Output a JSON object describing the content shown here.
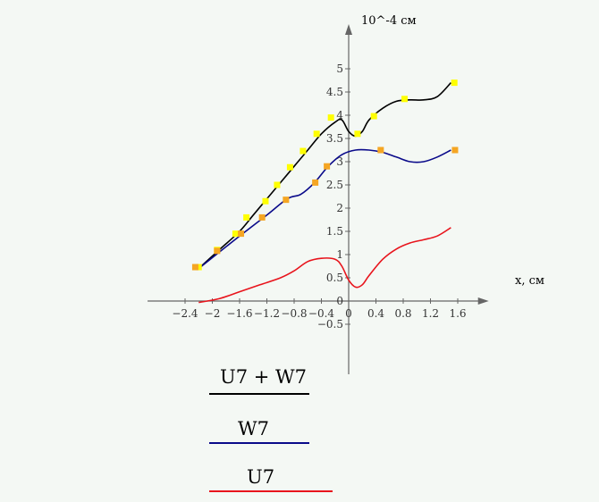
{
  "chart_data": {
    "type": "line",
    "title": "",
    "ylabel": "10^-4 см",
    "xlabel": "x, см",
    "xlim": [
      -2.95,
      1.95
    ],
    "ylim": [
      -1.0,
      5.5
    ],
    "x_ticks": [
      -2.4,
      -2,
      -1.6,
      -1.2,
      -0.8,
      -0.4,
      0,
      0.4,
      0.8,
      1.2,
      1.6
    ],
    "x_tick_labels": [
      "−2.4",
      "−2",
      "−1.6",
      "−1.2",
      "−0.8",
      "−0.4",
      "0",
      "0.4",
      "0.8",
      "1.2",
      "1.6"
    ],
    "y_ticks": [
      -0.5,
      0,
      0.5,
      1,
      1.5,
      2,
      2.5,
      3,
      3.5,
      4,
      4.5,
      5
    ],
    "y_tick_labels": [
      "−0.5",
      "0",
      "0.5",
      "1",
      "1.5",
      "2",
      "2.5",
      "3",
      "3.5",
      "4",
      "4.5",
      "5"
    ],
    "series": [
      {
        "name": "U7 + W7",
        "color": "#000000",
        "x": [
          -2.2,
          -1.9,
          -1.6,
          -1.4,
          -1.2,
          -1.0,
          -0.8,
          -0.6,
          -0.4,
          -0.2,
          -0.1,
          0.0,
          0.1,
          0.2,
          0.3,
          0.5,
          0.7,
          0.9,
          1.1,
          1.3,
          1.5
        ],
        "y": [
          0.7,
          1.1,
          1.5,
          1.85,
          2.2,
          2.55,
          2.9,
          3.25,
          3.6,
          3.85,
          3.9,
          3.65,
          3.55,
          3.65,
          3.9,
          4.15,
          4.3,
          4.33,
          4.33,
          4.4,
          4.7
        ]
      },
      {
        "name": "W7",
        "color": "#0a0a8a",
        "x": [
          -2.2,
          -1.9,
          -1.6,
          -1.2,
          -0.9,
          -0.7,
          -0.5,
          -0.3,
          -0.1,
          0.1,
          0.3,
          0.5,
          0.7,
          0.9,
          1.1,
          1.3,
          1.5
        ],
        "y": [
          0.7,
          1.05,
          1.4,
          1.85,
          2.2,
          2.3,
          2.55,
          2.9,
          3.15,
          3.25,
          3.25,
          3.2,
          3.1,
          3.0,
          3.0,
          3.1,
          3.25
        ]
      },
      {
        "name": "U7",
        "color": "#e8141c",
        "x": [
          -2.2,
          -1.9,
          -1.6,
          -1.3,
          -1.0,
          -0.8,
          -0.6,
          -0.4,
          -0.2,
          -0.1,
          0.0,
          0.1,
          0.2,
          0.3,
          0.5,
          0.7,
          0.9,
          1.1,
          1.3,
          1.5
        ],
        "y": [
          -0.03,
          0.05,
          0.2,
          0.35,
          0.5,
          0.65,
          0.85,
          0.92,
          0.9,
          0.75,
          0.45,
          0.3,
          0.35,
          0.55,
          0.9,
          1.12,
          1.25,
          1.32,
          1.4,
          1.58
        ]
      }
    ],
    "markers": [
      {
        "series": "U7 + W7",
        "color": "#ffff00",
        "x": [
          -2.2,
          -1.93,
          -1.66,
          -1.5,
          -1.22,
          -1.05,
          -0.86,
          -0.67,
          -0.47,
          -0.26,
          0.13,
          0.37,
          0.82,
          1.55
        ],
        "y": [
          0.73,
          1.1,
          1.45,
          1.8,
          2.15,
          2.5,
          2.88,
          3.23,
          3.6,
          3.95,
          3.6,
          3.98,
          4.35,
          4.7
        ]
      },
      {
        "series": "W7",
        "color": "#f5a623",
        "x": [
          -2.25,
          -1.93,
          -1.58,
          -1.27,
          -0.92,
          -0.49,
          -0.32,
          0.47,
          1.56
        ],
        "y": [
          0.73,
          1.08,
          1.45,
          1.8,
          2.18,
          2.55,
          2.9,
          3.25,
          3.25
        ]
      }
    ],
    "legend": [
      {
        "label": "U7 + W7",
        "color": "#000000"
      },
      {
        "label": "W7",
        "color": "#0a0a8a"
      },
      {
        "label": "U7",
        "color": "#e8141c"
      }
    ],
    "legend_position": "bottom-left"
  }
}
